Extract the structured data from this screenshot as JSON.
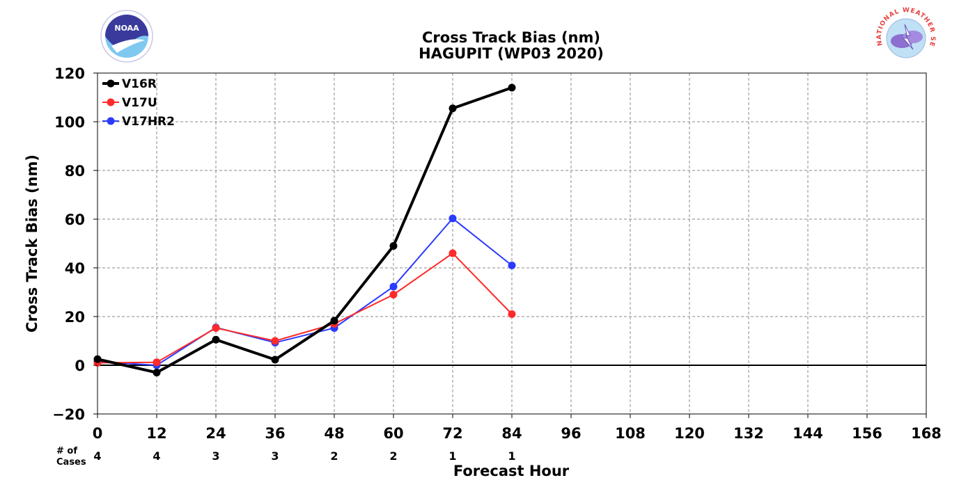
{
  "chart_data": {
    "type": "line",
    "title": "Cross Track Bias (nm)",
    "subtitle": "HAGUPIT (WP03 2020)",
    "xlabel": "Forecast Hour",
    "ylabel": "Cross Track Bias (nm)",
    "xlim": [
      0,
      168
    ],
    "ylim": [
      -20,
      120
    ],
    "x_ticks": [
      0,
      12,
      24,
      36,
      48,
      60,
      72,
      84,
      96,
      108,
      120,
      132,
      144,
      156,
      168
    ],
    "y_ticks": [
      -20,
      0,
      20,
      40,
      60,
      80,
      100,
      120
    ],
    "grid": true,
    "legend_position": "top-left",
    "x": [
      0,
      12,
      24,
      36,
      48,
      60,
      72,
      84
    ],
    "series": [
      {
        "name": "V16R",
        "color": "#000000",
        "values": [
          2.5,
          -3,
          10.5,
          2.3,
          18.3,
          49,
          105.5,
          114
        ]
      },
      {
        "name": "V17U",
        "color": "#ff2a2a",
        "values": [
          1,
          1.2,
          15.3,
          10,
          17,
          29,
          46,
          21
        ]
      },
      {
        "name": "V17HR2",
        "color": "#2a3aff",
        "values": [
          1.5,
          0,
          15.5,
          9.3,
          15.3,
          32.3,
          60.3,
          41
        ]
      }
    ],
    "cases_label_line1": "# of",
    "cases_label_line2": "Cases",
    "cases": [
      {
        "x": 0,
        "n": "4"
      },
      {
        "x": 12,
        "n": "4"
      },
      {
        "x": 24,
        "n": "3"
      },
      {
        "x": 36,
        "n": "3"
      },
      {
        "x": 48,
        "n": "2"
      },
      {
        "x": 60,
        "n": "2"
      },
      {
        "x": 72,
        "n": "1"
      },
      {
        "x": 84,
        "n": "1"
      }
    ]
  },
  "logos": {
    "noaa_text": "NOAA",
    "nws_text": "NATIONAL WEATHER SERVICE"
  }
}
